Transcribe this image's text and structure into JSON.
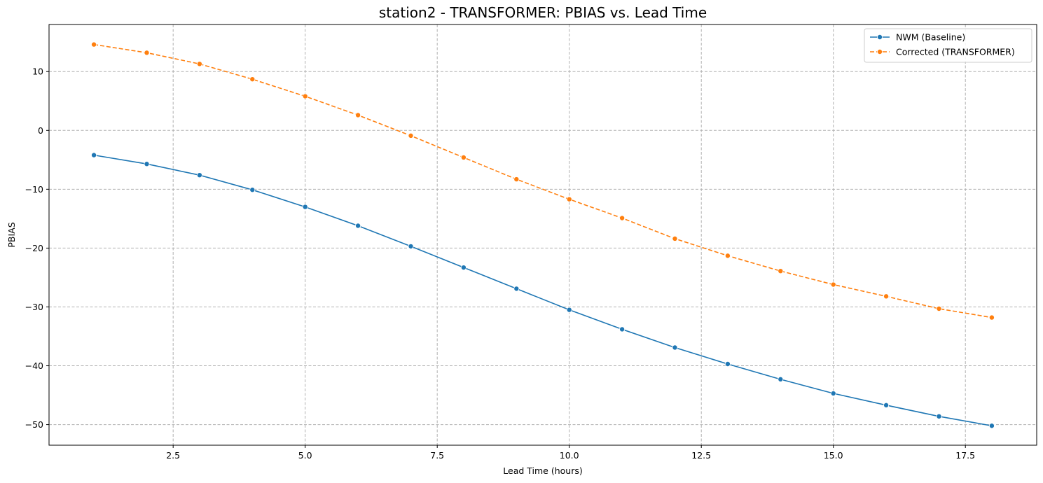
{
  "chart_data": {
    "type": "line",
    "title": "station2 - TRANSFORMER: PBIAS vs. Lead Time",
    "xlabel": "Lead Time (hours)",
    "ylabel": "PBIAS",
    "xlim": [
      0.15,
      18.85
    ],
    "ylim": [
      -53.5,
      18
    ],
    "xticks": [
      2.5,
      5.0,
      7.5,
      10.0,
      12.5,
      15.0,
      17.5
    ],
    "xtick_labels": [
      "2.5",
      "5.0",
      "7.5",
      "10.0",
      "12.5",
      "15.0",
      "17.5"
    ],
    "yticks": [
      10,
      0,
      -10,
      -20,
      -30,
      -40,
      -50
    ],
    "ytick_labels": [
      "10",
      "0",
      "−10",
      "−20",
      "−30",
      "−40",
      "−50"
    ],
    "grid": true,
    "legend_position": "top-right",
    "x": [
      1,
      2,
      3,
      4,
      5,
      6,
      7,
      8,
      9,
      10,
      11,
      12,
      13,
      14,
      15,
      16,
      17,
      18
    ],
    "series": [
      {
        "name": "NWM (Baseline)",
        "color": "#1f77b4",
        "dash": "solid",
        "values": [
          -4.2,
          -5.7,
          -7.6,
          -10.1,
          -13.0,
          -16.2,
          -19.7,
          -23.3,
          -26.9,
          -30.5,
          -33.8,
          -36.9,
          -39.7,
          -42.3,
          -44.7,
          -46.7,
          -48.6,
          -50.2
        ]
      },
      {
        "name": "Corrected (TRANSFORMER)",
        "color": "#ff7f0e",
        "dash": "dashed",
        "values": [
          14.6,
          13.2,
          11.3,
          8.7,
          5.8,
          2.6,
          -0.9,
          -4.6,
          -8.3,
          -11.7,
          -14.9,
          -18.4,
          -21.3,
          -23.9,
          -26.2,
          -28.2,
          -30.3,
          -31.8
        ]
      }
    ]
  }
}
